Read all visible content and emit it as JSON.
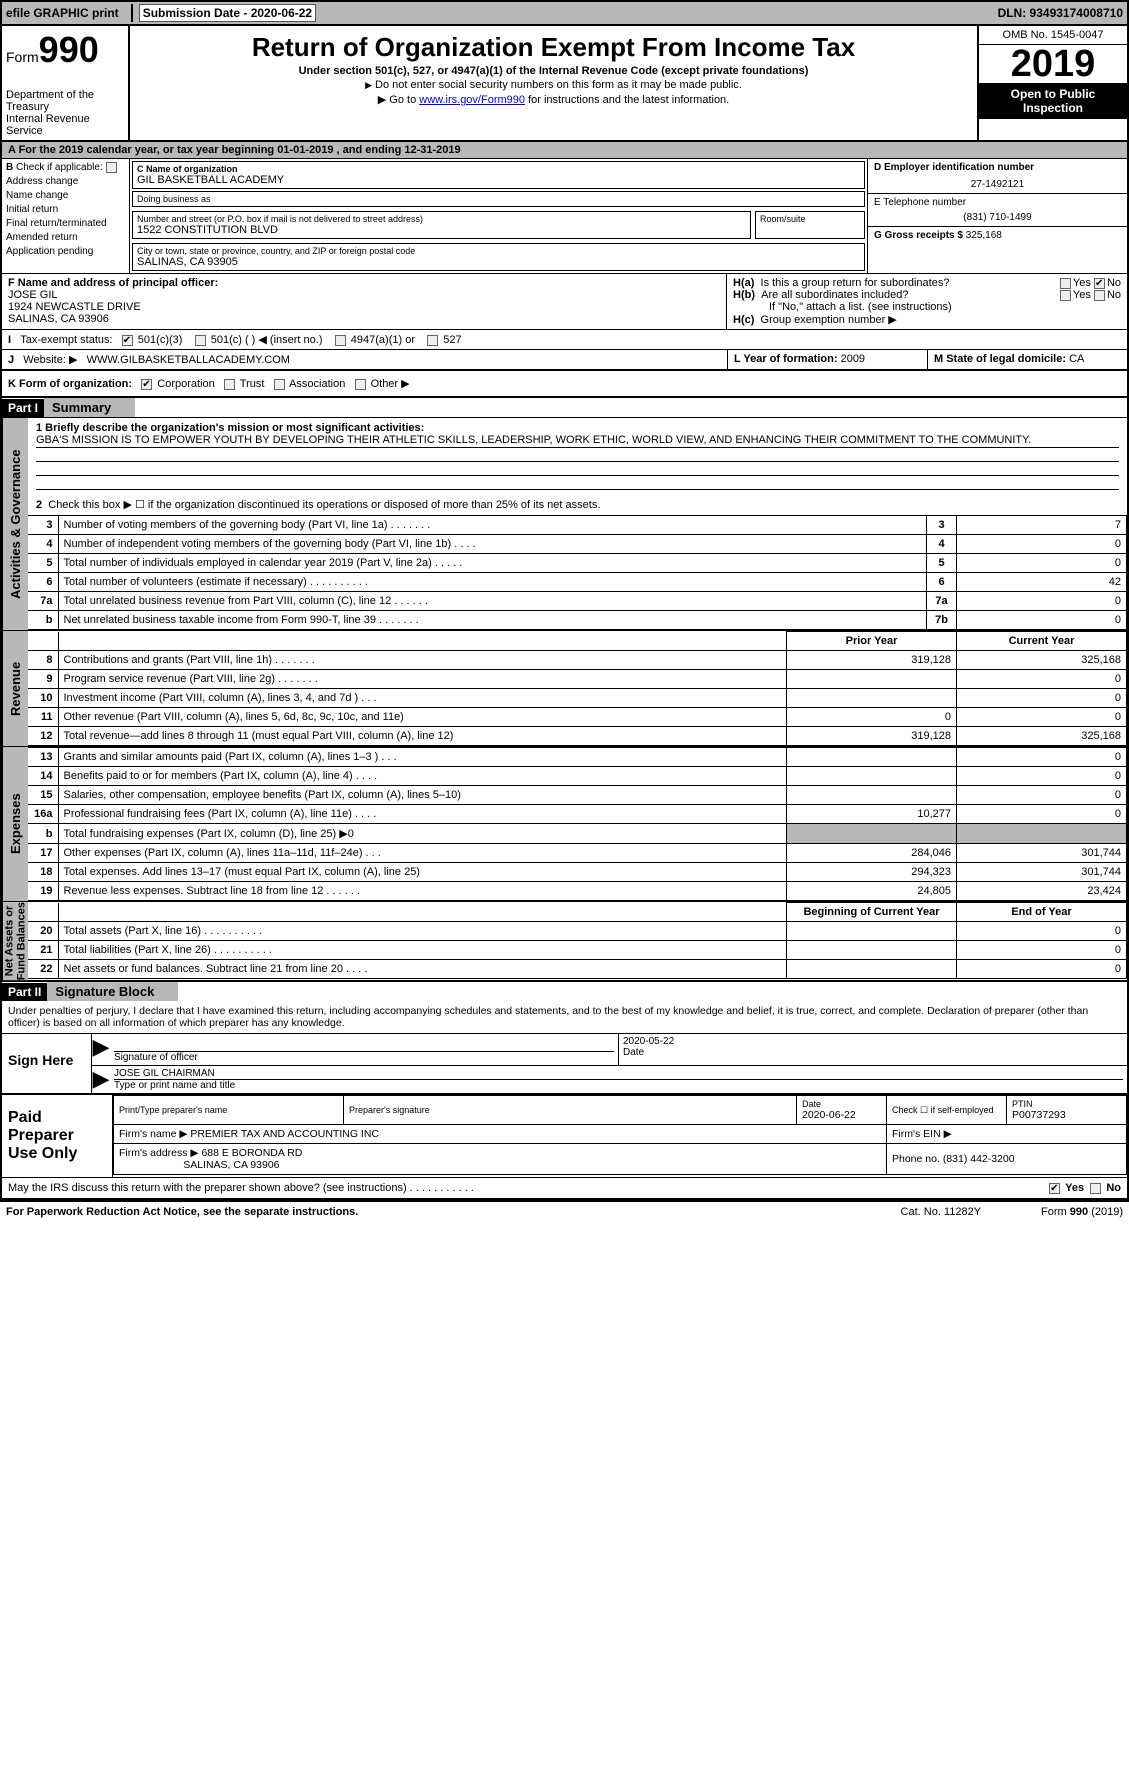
{
  "topbar": {
    "efile_label": "efile GRAPHIC print",
    "sub_label": "Submission Date - 2020-06-22",
    "dln": "DLN: 93493174008710"
  },
  "header": {
    "form_label": "Form",
    "form_num": "990",
    "dept": "Department of the Treasury\nInternal Revenue Service",
    "title": "Return of Organization Exempt From Income Tax",
    "sub1": "Under section 501(c), 527, or 4947(a)(1) of the Internal Revenue Code (except private foundations)",
    "sub2": "Do not enter social security numbers on this form as it may be made public.",
    "sub3_pre": "Go to ",
    "sub3_link": "www.irs.gov/Form990",
    "sub3_post": " for instructions and the latest information.",
    "omb": "OMB No. 1545-0047",
    "year": "2019",
    "inspect": "Open to Public Inspection"
  },
  "rowA": {
    "text": "A   For the 2019 calendar year, or tax year beginning 01-01-2019       , and ending 12-31-2019"
  },
  "colB": {
    "label": "Check if applicable:",
    "items": [
      "Address change",
      "Name change",
      "Initial return",
      "Final return/terminated",
      "Amended return",
      "Application pending"
    ]
  },
  "colC": {
    "name_label": "C Name of organization",
    "name": "GIL BASKETBALL ACADEMY",
    "dba_label": "Doing business as",
    "dba": "",
    "addr_label": "Number and street (or P.O. box if mail is not delivered to street address)",
    "room_label": "Room/suite",
    "addr": "1522 CONSTITUTION BLVD",
    "city_label": "City or town, state or province, country, and ZIP or foreign postal code",
    "city": "SALINAS, CA  93905"
  },
  "colD": {
    "ein_label": "D Employer identification number",
    "ein": "27-1492121",
    "phone_label": "E Telephone number",
    "phone": "(831) 710-1499",
    "gross_label": "G Gross receipts $",
    "gross": "325,168"
  },
  "rowF": {
    "label": "F  Name and address of principal officer:",
    "name": "JOSE GIL",
    "addr1": "1924 NEWCASTLE DRIVE",
    "addr2": "SALINAS, CA  93906"
  },
  "rowH": {
    "ha": "Is this a group return for subordinates?",
    "hb": "Are all subordinates included?",
    "hb_note": "If \"No,\" attach a list. (see instructions)",
    "hc": "Group exemption number ▶",
    "yes": "Yes",
    "no": "No"
  },
  "rowI": {
    "label": "Tax-exempt status:",
    "opts": [
      "501(c)(3)",
      "501(c) (  ) ◀ (insert no.)",
      "4947(a)(1) or",
      "527"
    ]
  },
  "rowJ": {
    "label": "Website: ▶",
    "val": "WWW.GILBASKETBALLACADEMY.COM"
  },
  "rowLM": {
    "L_label": "L Year of formation:",
    "L_val": "2009",
    "M_label": "M State of legal domicile:",
    "M_val": "CA"
  },
  "rowK": {
    "label": "K Form of organization:",
    "opts": [
      "Corporation",
      "Trust",
      "Association",
      "Other ▶"
    ]
  },
  "part1": {
    "bar": "Part I",
    "title": "Summary"
  },
  "summary": {
    "q1_label": "1  Briefly describe the organization's mission or most significant activities:",
    "q1_text": "GBA'S MISSION IS TO EMPOWER YOUTH BY DEVELOPING THEIR ATHLETIC SKILLS, LEADERSHIP, WORK ETHIC, WORLD VIEW, AND ENHANCING THEIR COMMITMENT TO THE COMMUNITY.",
    "q2": "Check this box ▶ ☐  if the organization discontinued its operations or disposed of more than 25% of its net assets.",
    "lines_ag": [
      {
        "n": "3",
        "d": "Number of voting members of the governing body (Part VI, line 1a)   .     .     .     .     .     .     .",
        "k": "3",
        "v": "7"
      },
      {
        "n": "4",
        "d": "Number of independent voting members of the governing body (Part VI, line 1b)   .     .     .     .",
        "k": "4",
        "v": "0"
      },
      {
        "n": "5",
        "d": "Total number of individuals employed in calendar year 2019 (Part V, line 2a)   .     .     .     .     .",
        "k": "5",
        "v": "0"
      },
      {
        "n": "6",
        "d": "Total number of volunteers (estimate if necessary)   .     .     .     .     .     .     .     .     .     .",
        "k": "6",
        "v": "42"
      },
      {
        "n": "7a",
        "d": "Total unrelated business revenue from Part VIII, column (C), line 12   .     .     .     .     .     .",
        "k": "7a",
        "v": "0"
      },
      {
        "n": "b",
        "d": "Net unrelated business taxable income from Form 990-T, line 39   .     .     .     .     .     .     .",
        "k": "7b",
        "v": "0"
      }
    ],
    "col_hdr_prior": "Prior Year",
    "col_hdr_curr": "Current Year",
    "revenue": [
      {
        "n": "8",
        "d": "Contributions and grants (Part VIII, line 1h)   .     .     .     .     .     .     .",
        "p": "319,128",
        "c": "325,168"
      },
      {
        "n": "9",
        "d": "Program service revenue (Part VIII, line 2g)   .     .     .     .     .     .     .",
        "p": "",
        "c": "0"
      },
      {
        "n": "10",
        "d": "Investment income (Part VIII, column (A), lines 3, 4, and 7d )   .     .     .",
        "p": "",
        "c": "0"
      },
      {
        "n": "11",
        "d": "Other revenue (Part VIII, column (A), lines 5, 6d, 8c, 9c, 10c, and 11e)",
        "p": "0",
        "c": "0"
      },
      {
        "n": "12",
        "d": "Total revenue—add lines 8 through 11 (must equal Part VIII, column (A), line 12)",
        "p": "319,128",
        "c": "325,168"
      }
    ],
    "expenses": [
      {
        "n": "13",
        "d": "Grants and similar amounts paid (Part IX, column (A), lines 1–3 )   .     .     .",
        "p": "",
        "c": "0"
      },
      {
        "n": "14",
        "d": "Benefits paid to or for members (Part IX, column (A), line 4)   .     .     .     .",
        "p": "",
        "c": "0"
      },
      {
        "n": "15",
        "d": "Salaries, other compensation, employee benefits (Part IX, column (A), lines 5–10)",
        "p": "",
        "c": "0"
      },
      {
        "n": "16a",
        "d": "Professional fundraising fees (Part IX, column (A), line 11e)   .     .     .     .",
        "p": "10,277",
        "c": "0"
      },
      {
        "n": "b",
        "d": "Total fundraising expenses (Part IX, column (D), line 25) ▶0",
        "p": "shade",
        "c": "shade"
      },
      {
        "n": "17",
        "d": "Other expenses (Part IX, column (A), lines 11a–11d, 11f–24e)   .     .     .",
        "p": "284,046",
        "c": "301,744"
      },
      {
        "n": "18",
        "d": "Total expenses. Add lines 13–17 (must equal Part IX, column (A), line 25)",
        "p": "294,323",
        "c": "301,744"
      },
      {
        "n": "19",
        "d": "Revenue less expenses. Subtract line 18 from line 12   .     .     .     .     .     .",
        "p": "24,805",
        "c": "23,424"
      }
    ],
    "col_hdr_bcy": "Beginning of Current Year",
    "col_hdr_eoy": "End of Year",
    "netassets": [
      {
        "n": "20",
        "d": "Total assets (Part X, line 16)   .     .     .     .     .     .     .     .     .     .",
        "p": "",
        "c": "0"
      },
      {
        "n": "21",
        "d": "Total liabilities (Part X, line 26)   .     .     .     .     .     .     .     .     .     .",
        "p": "",
        "c": "0"
      },
      {
        "n": "22",
        "d": "Net assets or fund balances. Subtract line 21 from line 20   .     .     .     .",
        "p": "",
        "c": "0"
      }
    ]
  },
  "vtabs": {
    "ag": "Activities & Governance",
    "rev": "Revenue",
    "exp": "Expenses",
    "na": "Net Assets or\nFund Balances"
  },
  "part2": {
    "bar": "Part II",
    "title": "Signature Block"
  },
  "sig": {
    "note": "Under penalties of perjury, I declare that I have examined this return, including accompanying schedules and statements, and to the best of my knowledge and belief, it is true, correct, and complete. Declaration of preparer (other than officer) is based on all information of which preparer has any knowledge.",
    "here": "Sign Here",
    "date": "2020-05-22",
    "sig_of_officer": "Signature of officer",
    "date_lbl": "Date",
    "name": "JOSE GIL CHAIRMAN",
    "name_lbl": "Type or print name and title"
  },
  "prep": {
    "label": "Paid Preparer Use Only",
    "h_name": "Print/Type preparer's name",
    "h_sig": "Preparer's signature",
    "h_date": "Date",
    "date": "2020-06-22",
    "h_chk": "Check ☐ if self-employed",
    "h_ptin": "PTIN",
    "ptin": "P00737293",
    "firm_name_lbl": "Firm's name   ▶",
    "firm_name": "PREMIER TAX AND ACCOUNTING INC",
    "firm_ein_lbl": "Firm's EIN ▶",
    "firm_addr_lbl": "Firm's address ▶",
    "firm_addr1": "688 E BORONDA RD",
    "firm_addr2": "SALINAS, CA  93906",
    "firm_phone_lbl": "Phone no.",
    "firm_phone": "(831) 442-3200",
    "discuss": "May the IRS discuss this return with the preparer shown above? (see instructions)   .     .     .     .     .     .     .     .     .     .     .",
    "yes": "Yes",
    "no": "No"
  },
  "footer": {
    "left": "For Paperwork Reduction Act Notice, see the separate instructions.",
    "mid": "Cat. No. 11282Y",
    "right": "Form 990 (2019)"
  },
  "colors": {
    "shade": "#b8b8b8",
    "link": "#0000cc"
  }
}
